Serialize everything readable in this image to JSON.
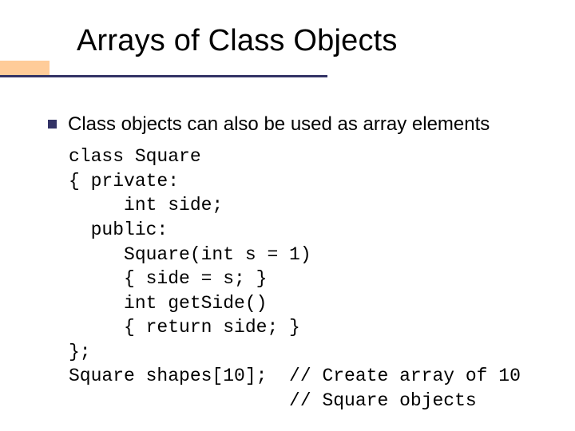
{
  "slide": {
    "title": "Arrays of Class Objects",
    "bullet_text": "Class objects can also be used as array elements",
    "code_lines": [
      "class Square",
      "{ private:",
      "     int side;",
      "  public:",
      "     Square(int s = 1)",
      "     { side = s; }",
      "     int getSide()",
      "     { return side; }",
      "};",
      "Square shapes[10];  // Create array of 10",
      "                    // Square objects"
    ]
  },
  "colors": {
    "accent": "#ffcc99",
    "underline": "#333366",
    "bullet": "#333366",
    "text": "#000000",
    "background": "#ffffff"
  },
  "typography": {
    "title_fontsize": 38,
    "body_fontsize": 24,
    "code_fontsize": 23,
    "title_font": "Verdana",
    "code_font": "Courier New"
  }
}
